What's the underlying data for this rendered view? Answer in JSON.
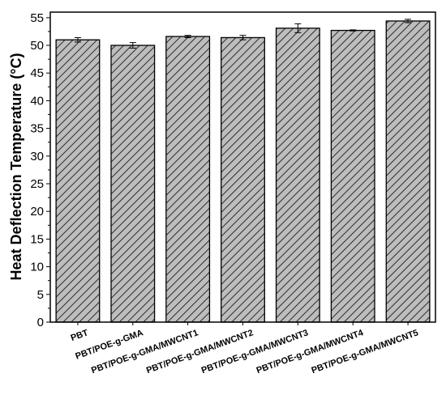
{
  "chart_data": {
    "type": "bar",
    "categories": [
      "PBT",
      "PBT/POE-g-GMA",
      "PBT/POE-g-GMA/MWCNT1",
      "PBT/POE-g-GMA/MWCNT2",
      "PBT/POE-g-GMA/MWCNT3",
      "PBT/POE-g-GMA/MWCNT4",
      "PBT/POE-g-GMA/MWCNT5"
    ],
    "values": [
      51.0,
      50.0,
      51.6,
      51.4,
      53.1,
      52.7,
      54.4
    ],
    "errors": [
      0.4,
      0.5,
      0.2,
      0.4,
      0.8,
      0.1,
      0.3
    ],
    "title": "",
    "xlabel": "",
    "ylabel": "Heat Deflection Temperature (°C)",
    "ylim": [
      0,
      56
    ],
    "yticks": [
      0,
      5,
      10,
      15,
      20,
      25,
      30,
      35,
      40,
      45,
      50,
      55
    ],
    "grid": false,
    "legend": "none",
    "colors": {
      "bar_fill": "#bdbdbd",
      "hatch": "#2a2a2a",
      "edge": "#000000"
    }
  }
}
